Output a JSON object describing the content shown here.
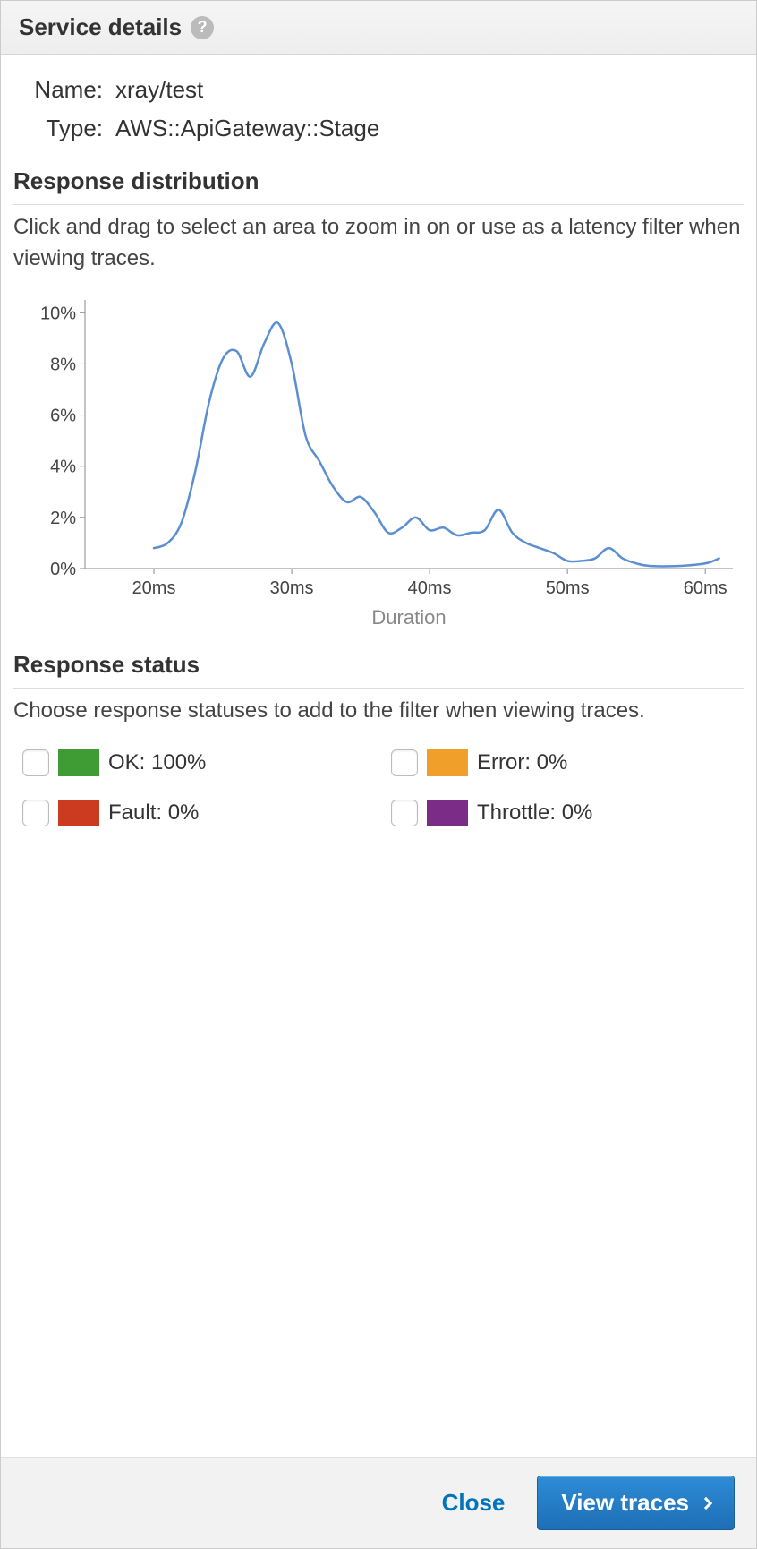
{
  "header": {
    "title": "Service details"
  },
  "details": {
    "name_label": "Name:",
    "name_value": "xray/test",
    "type_label": "Type:",
    "type_value": "AWS::ApiGateway::Stage"
  },
  "distribution": {
    "title": "Response distribution",
    "description": "Click and drag to select an area to zoom in on or use as a latency filter when viewing traces.",
    "chart": {
      "type": "line",
      "line_color": "#5b8fd0",
      "line_width": 2.5,
      "background_color": "#ffffff",
      "axis_color": "#888888",
      "tick_color": "#888888",
      "tick_label_color": "#444444",
      "axis_label_color": "#888888",
      "tick_fontsize": 20,
      "axis_label_fontsize": 22,
      "x_label": "Duration",
      "x_ticks": [
        20,
        30,
        40,
        50,
        60
      ],
      "x_tick_labels": [
        "20ms",
        "30ms",
        "40ms",
        "50ms",
        "60ms"
      ],
      "xlim": [
        15,
        62
      ],
      "y_ticks": [
        0,
        2,
        4,
        6,
        8,
        10
      ],
      "y_tick_labels": [
        "0%",
        "2%",
        "4%",
        "6%",
        "8%",
        "10%"
      ],
      "ylim": [
        0,
        10.5
      ],
      "points": [
        {
          "x": 20.0,
          "y": 0.8
        },
        {
          "x": 21.0,
          "y": 1.0
        },
        {
          "x": 22.0,
          "y": 1.8
        },
        {
          "x": 23.0,
          "y": 3.8
        },
        {
          "x": 24.0,
          "y": 6.5
        },
        {
          "x": 25.0,
          "y": 8.2
        },
        {
          "x": 26.0,
          "y": 8.5
        },
        {
          "x": 27.0,
          "y": 7.5
        },
        {
          "x": 28.0,
          "y": 8.8
        },
        {
          "x": 29.0,
          "y": 9.6
        },
        {
          "x": 30.0,
          "y": 8.0
        },
        {
          "x": 31.0,
          "y": 5.2
        },
        {
          "x": 32.0,
          "y": 4.2
        },
        {
          "x": 33.0,
          "y": 3.2
        },
        {
          "x": 34.0,
          "y": 2.6
        },
        {
          "x": 35.0,
          "y": 2.8
        },
        {
          "x": 36.0,
          "y": 2.2
        },
        {
          "x": 37.0,
          "y": 1.4
        },
        {
          "x": 38.0,
          "y": 1.6
        },
        {
          "x": 39.0,
          "y": 2.0
        },
        {
          "x": 40.0,
          "y": 1.5
        },
        {
          "x": 41.0,
          "y": 1.6
        },
        {
          "x": 42.0,
          "y": 1.3
        },
        {
          "x": 43.0,
          "y": 1.4
        },
        {
          "x": 44.0,
          "y": 1.5
        },
        {
          "x": 45.0,
          "y": 2.3
        },
        {
          "x": 46.0,
          "y": 1.4
        },
        {
          "x": 47.0,
          "y": 1.0
        },
        {
          "x": 48.0,
          "y": 0.8
        },
        {
          "x": 49.0,
          "y": 0.6
        },
        {
          "x": 50.0,
          "y": 0.3
        },
        {
          "x": 51.0,
          "y": 0.3
        },
        {
          "x": 52.0,
          "y": 0.4
        },
        {
          "x": 53.0,
          "y": 0.8
        },
        {
          "x": 54.0,
          "y": 0.4
        },
        {
          "x": 55.0,
          "y": 0.2
        },
        {
          "x": 56.0,
          "y": 0.1
        },
        {
          "x": 58.0,
          "y": 0.1
        },
        {
          "x": 60.0,
          "y": 0.2
        },
        {
          "x": 61.0,
          "y": 0.4
        }
      ]
    }
  },
  "status": {
    "title": "Response status",
    "description": "Choose response statuses to add to the filter when viewing traces.",
    "items": [
      {
        "key": "ok",
        "color": "#3f9c35",
        "label": "OK: 100%"
      },
      {
        "key": "error",
        "color": "#f0a02a",
        "label": "Error: 0%"
      },
      {
        "key": "fault",
        "color": "#cc3b1f",
        "label": "Fault: 0%"
      },
      {
        "key": "throttle",
        "color": "#7b2c87",
        "label": "Throttle: 0%"
      }
    ]
  },
  "footer": {
    "close_label": "Close",
    "view_traces_label": "View traces"
  }
}
